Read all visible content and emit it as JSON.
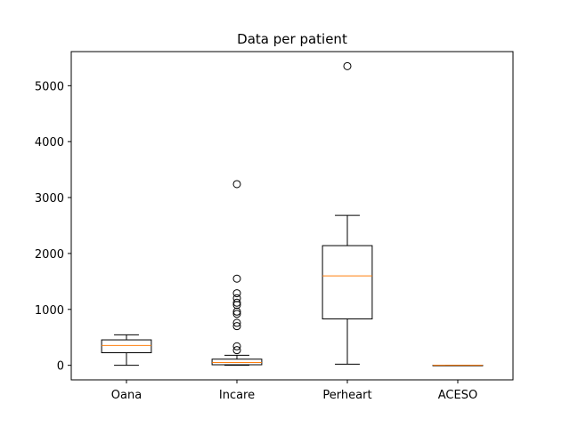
{
  "chart_data": {
    "type": "boxplot",
    "title": "Data per patient",
    "xlabel": "",
    "ylabel": "",
    "ylim": [
      -260,
      5610
    ],
    "yticks": [
      0,
      1000,
      2000,
      3000,
      4000,
      5000
    ],
    "categories": [
      "Oana",
      "Incare",
      "Perheart",
      "ACESO"
    ],
    "boxes": [
      {
        "category": "Oana",
        "whisker_low": 0,
        "q1": 225,
        "median": 355,
        "q3": 455,
        "whisker_high": 545,
        "outliers": []
      },
      {
        "category": "Incare",
        "whisker_low": 0,
        "q1": 10,
        "median": 50,
        "q3": 110,
        "whisker_high": 180,
        "outliers": [
          270,
          340,
          700,
          760,
          920,
          960,
          1080,
          1120,
          1200,
          1290,
          1550,
          3240
        ]
      },
      {
        "category": "Perheart",
        "whisker_low": 20,
        "q1": 830,
        "median": 1600,
        "q3": 2140,
        "whisker_high": 2680,
        "outliers": [
          5350
        ]
      },
      {
        "category": "ACESO",
        "whisker_low": 0,
        "q1": 0,
        "median": 0,
        "q3": 0,
        "whisker_high": 0,
        "outliers": []
      }
    ],
    "grid": false,
    "legend": "none",
    "colors": {
      "box": "#000000",
      "median": "#ff7f0e",
      "background": "#ffffff"
    }
  }
}
